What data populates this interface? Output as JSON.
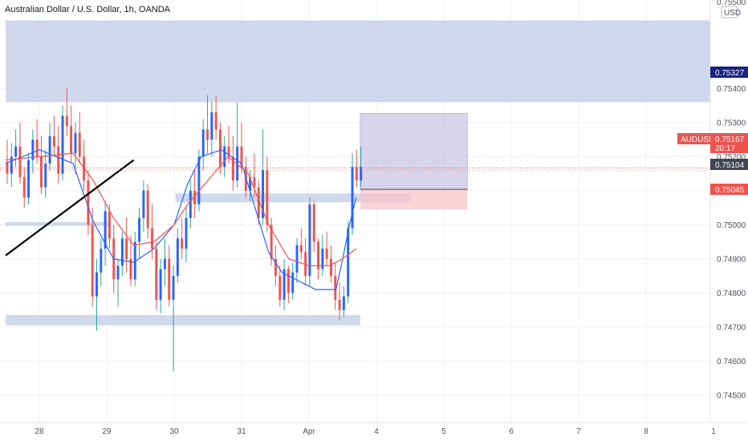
{
  "header": {
    "title": "Australian Dollar / U.S. Dollar, 1h, OANDA"
  },
  "price_axis": {
    "currency": "USD",
    "symbol": "AUDUSD",
    "last_price": "0.75167",
    "countdown": "20:17",
    "target_label": "0.75327",
    "entry_label": "0.75104",
    "stop_label": "0.75045",
    "top_partial_label": "0.75500"
  },
  "colors": {
    "bull": "#2962ff",
    "bear": "#ef5350",
    "zone": "#c8d1ea",
    "ma_blue": "#2962ff",
    "ma_red": "#ef5350",
    "target_tag": "#1a237e",
    "last_tag": "#ef5350",
    "entry_tag": "#434651",
    "stop_tag": "#ef5350"
  },
  "chart_data": {
    "type": "candlestick",
    "title": "Australian Dollar / U.S. Dollar, 1h, OANDA",
    "y_unit": "USD",
    "ylim": [
      0.7446,
      0.7557
    ],
    "y_ticks": [
      "0.75400",
      "0.75300",
      "0.75200",
      "0.75100",
      "0.75000",
      "0.74900",
      "0.74800",
      "0.74700",
      "0.74600",
      "0.74500"
    ],
    "y_tick_values": [
      0.754,
      0.753,
      0.752,
      0.751,
      0.75,
      0.749,
      0.748,
      0.747,
      0.746,
      0.745
    ],
    "x_ticks": [
      "28",
      "29",
      "30",
      "31",
      "Apr",
      "4",
      "5",
      "6",
      "7",
      "8",
      "1"
    ],
    "x_tick_positions": [
      0.5,
      1.5,
      2.5,
      3.5,
      4.5,
      5.5,
      6.5,
      7.5,
      8.5,
      9.5,
      10.5
    ],
    "x_range": [
      0,
      10.5
    ],
    "grid": true,
    "zones": [
      {
        "name": "upper supply zone",
        "y0": 0.7536,
        "y1": 0.756,
        "x0": 0,
        "x1": 10.5
      },
      {
        "name": "mid support zone",
        "y0": 0.75066,
        "y1": 0.75092,
        "x0": 2.52,
        "x1": 6.0
      },
      {
        "name": "left zone",
        "y0": 0.74997,
        "y1": 0.75008,
        "x0": 0,
        "x1": 1.55
      },
      {
        "name": "lower demand zone",
        "y0": 0.74705,
        "y1": 0.74735,
        "x0": 0,
        "x1": 5.26
      }
    ],
    "position": {
      "type": "long",
      "entry": 0.75104,
      "target": 0.75327,
      "stop": 0.75045,
      "x0": 5.26,
      "x1": 6.85
    },
    "trendline": {
      "x0": 0,
      "y0": 0.7491,
      "x1": 1.9,
      "y1": 0.7519
    },
    "last_price": 0.75167,
    "candles_start_x": 0,
    "candles_step_x": 0.0632,
    "candles": [
      [
        0.75185,
        0.7525,
        0.7512,
        0.7515
      ],
      [
        0.7515,
        0.7524,
        0.7511,
        0.752
      ],
      [
        0.752,
        0.7528,
        0.7517,
        0.7523
      ],
      [
        0.7523,
        0.753,
        0.7512,
        0.7514
      ],
      [
        0.7514,
        0.7517,
        0.7505,
        0.7508
      ],
      [
        0.7508,
        0.7521,
        0.7506,
        0.7519
      ],
      [
        0.7519,
        0.7528,
        0.7515,
        0.7525
      ],
      [
        0.7525,
        0.7531,
        0.7518,
        0.752
      ],
      [
        0.752,
        0.7526,
        0.7509,
        0.7511
      ],
      [
        0.7511,
        0.7522,
        0.7508,
        0.7518
      ],
      [
        0.7518,
        0.753,
        0.7516,
        0.7526
      ],
      [
        0.7526,
        0.7532,
        0.752,
        0.7523
      ],
      [
        0.7523,
        0.7529,
        0.7512,
        0.7515
      ],
      [
        0.7515,
        0.7535,
        0.7513,
        0.7532
      ],
      [
        0.7532,
        0.754,
        0.7526,
        0.7529
      ],
      [
        0.7529,
        0.7535,
        0.7518,
        0.7521
      ],
      [
        0.7521,
        0.753,
        0.7515,
        0.7527
      ],
      [
        0.7527,
        0.7533,
        0.7518,
        0.752
      ],
      [
        0.752,
        0.7525,
        0.751,
        0.7513
      ],
      [
        0.7513,
        0.7516,
        0.7497,
        0.75
      ],
      [
        0.75,
        0.7505,
        0.7476,
        0.7479
      ],
      [
        0.7479,
        0.749,
        0.7469,
        0.7486
      ],
      [
        0.7486,
        0.7496,
        0.7482,
        0.7493
      ],
      [
        0.7493,
        0.7507,
        0.7488,
        0.7504
      ],
      [
        0.7504,
        0.7506,
        0.7493,
        0.7496
      ],
      [
        0.7496,
        0.75,
        0.748,
        0.7484
      ],
      [
        0.7484,
        0.749,
        0.7476,
        0.7488
      ],
      [
        0.7488,
        0.7498,
        0.7485,
        0.7496
      ],
      [
        0.7496,
        0.7502,
        0.7486,
        0.749
      ],
      [
        0.749,
        0.7497,
        0.7482,
        0.7484
      ],
      [
        0.7484,
        0.7498,
        0.7482,
        0.7495
      ],
      [
        0.7495,
        0.7505,
        0.749,
        0.7502
      ],
      [
        0.7502,
        0.7513,
        0.7498,
        0.751
      ],
      [
        0.751,
        0.7512,
        0.7496,
        0.7499
      ],
      [
        0.7499,
        0.7506,
        0.749,
        0.7493
      ],
      [
        0.7493,
        0.7495,
        0.7475,
        0.7478
      ],
      [
        0.7478,
        0.749,
        0.7474,
        0.7487
      ],
      [
        0.7487,
        0.7496,
        0.7482,
        0.749
      ],
      [
        0.749,
        0.7494,
        0.7476,
        0.7478
      ],
      [
        0.7478,
        0.7488,
        0.7457,
        0.7485
      ],
      [
        0.7485,
        0.7499,
        0.7483,
        0.7496
      ],
      [
        0.7496,
        0.7502,
        0.749,
        0.7493
      ],
      [
        0.7493,
        0.7505,
        0.7489,
        0.7502
      ],
      [
        0.7502,
        0.7513,
        0.7499,
        0.751
      ],
      [
        0.751,
        0.7516,
        0.7502,
        0.7506
      ],
      [
        0.7506,
        0.7522,
        0.7504,
        0.752
      ],
      [
        0.752,
        0.7531,
        0.7516,
        0.7528
      ],
      [
        0.7528,
        0.7538,
        0.7521,
        0.7525
      ],
      [
        0.7525,
        0.7536,
        0.752,
        0.7533
      ],
      [
        0.7533,
        0.7538,
        0.7525,
        0.7528
      ],
      [
        0.7528,
        0.753,
        0.7515,
        0.7517
      ],
      [
        0.7517,
        0.7526,
        0.7514,
        0.7523
      ],
      [
        0.7523,
        0.7529,
        0.7518,
        0.752
      ],
      [
        0.752,
        0.7526,
        0.751,
        0.7513
      ],
      [
        0.7513,
        0.7536,
        0.7511,
        0.7523
      ],
      [
        0.7523,
        0.753,
        0.7515,
        0.7517
      ],
      [
        0.7517,
        0.752,
        0.7508,
        0.751
      ],
      [
        0.751,
        0.7516,
        0.7507,
        0.7514
      ],
      [
        0.7514,
        0.7521,
        0.7508,
        0.7511
      ],
      [
        0.7511,
        0.7513,
        0.75,
        0.7502
      ],
      [
        0.7502,
        0.7528,
        0.75,
        0.7516
      ],
      [
        0.7516,
        0.752,
        0.7498,
        0.75
      ],
      [
        0.75,
        0.7502,
        0.7488,
        0.749
      ],
      [
        0.749,
        0.7494,
        0.7482,
        0.7485
      ],
      [
        0.7485,
        0.7488,
        0.7476,
        0.7478
      ],
      [
        0.7478,
        0.749,
        0.7475,
        0.7487
      ],
      [
        0.7487,
        0.7488,
        0.7477,
        0.748
      ],
      [
        0.748,
        0.7489,
        0.7478,
        0.7486
      ],
      [
        0.7486,
        0.7496,
        0.7483,
        0.7494
      ],
      [
        0.7494,
        0.7499,
        0.749,
        0.7492
      ],
      [
        0.7492,
        0.7496,
        0.7482,
        0.7485
      ],
      [
        0.7485,
        0.7508,
        0.7482,
        0.7506
      ],
      [
        0.7506,
        0.7507,
        0.7492,
        0.7495
      ],
      [
        0.7495,
        0.7496,
        0.7484,
        0.7487
      ],
      [
        0.7487,
        0.7497,
        0.7485,
        0.7493
      ],
      [
        0.7493,
        0.7498,
        0.7488,
        0.749
      ],
      [
        0.749,
        0.7494,
        0.7483,
        0.7485
      ],
      [
        0.7485,
        0.7489,
        0.7475,
        0.7478
      ],
      [
        0.7478,
        0.7483,
        0.7472,
        0.7475
      ],
      [
        0.7475,
        0.7482,
        0.7473,
        0.7479
      ],
      [
        0.7479,
        0.7501,
        0.7477,
        0.7499
      ],
      [
        0.7499,
        0.7521,
        0.7497,
        0.7517
      ],
      [
        0.7517,
        0.7522,
        0.7511,
        0.7513
      ],
      [
        0.7513,
        0.7523,
        0.7511,
        0.7517
      ]
    ],
    "ma_blue": [
      [
        0,
        0.7518
      ],
      [
        0.5,
        0.7522
      ],
      [
        1.0,
        0.7518
      ],
      [
        1.3,
        0.7501
      ],
      [
        1.6,
        0.749
      ],
      [
        1.9,
        0.7489
      ],
      [
        2.2,
        0.7493
      ],
      [
        2.5,
        0.75
      ],
      [
        2.7,
        0.7512
      ],
      [
        2.9,
        0.752
      ],
      [
        3.2,
        0.7522
      ],
      [
        3.5,
        0.7518
      ],
      [
        3.7,
        0.7505
      ],
      [
        3.9,
        0.7492
      ],
      [
        4.1,
        0.7486
      ],
      [
        4.3,
        0.7484
      ],
      [
        4.6,
        0.7481
      ],
      [
        4.9,
        0.7481
      ],
      [
        5.0,
        0.749
      ],
      [
        5.1,
        0.75
      ],
      [
        5.2,
        0.7508
      ]
    ],
    "ma_red": [
      [
        0,
        0.7519
      ],
      [
        0.5,
        0.752
      ],
      [
        1.0,
        0.7521
      ],
      [
        1.3,
        0.7513
      ],
      [
        1.6,
        0.7502
      ],
      [
        1.9,
        0.7494
      ],
      [
        2.2,
        0.7495
      ],
      [
        2.5,
        0.75
      ],
      [
        2.7,
        0.7506
      ],
      [
        3.0,
        0.7513
      ],
      [
        3.3,
        0.752
      ],
      [
        3.6,
        0.7515
      ],
      [
        3.9,
        0.75
      ],
      [
        4.2,
        0.749
      ],
      [
        4.5,
        0.7488
      ],
      [
        4.8,
        0.7488
      ],
      [
        5.0,
        0.749
      ],
      [
        5.2,
        0.7493
      ]
    ]
  }
}
